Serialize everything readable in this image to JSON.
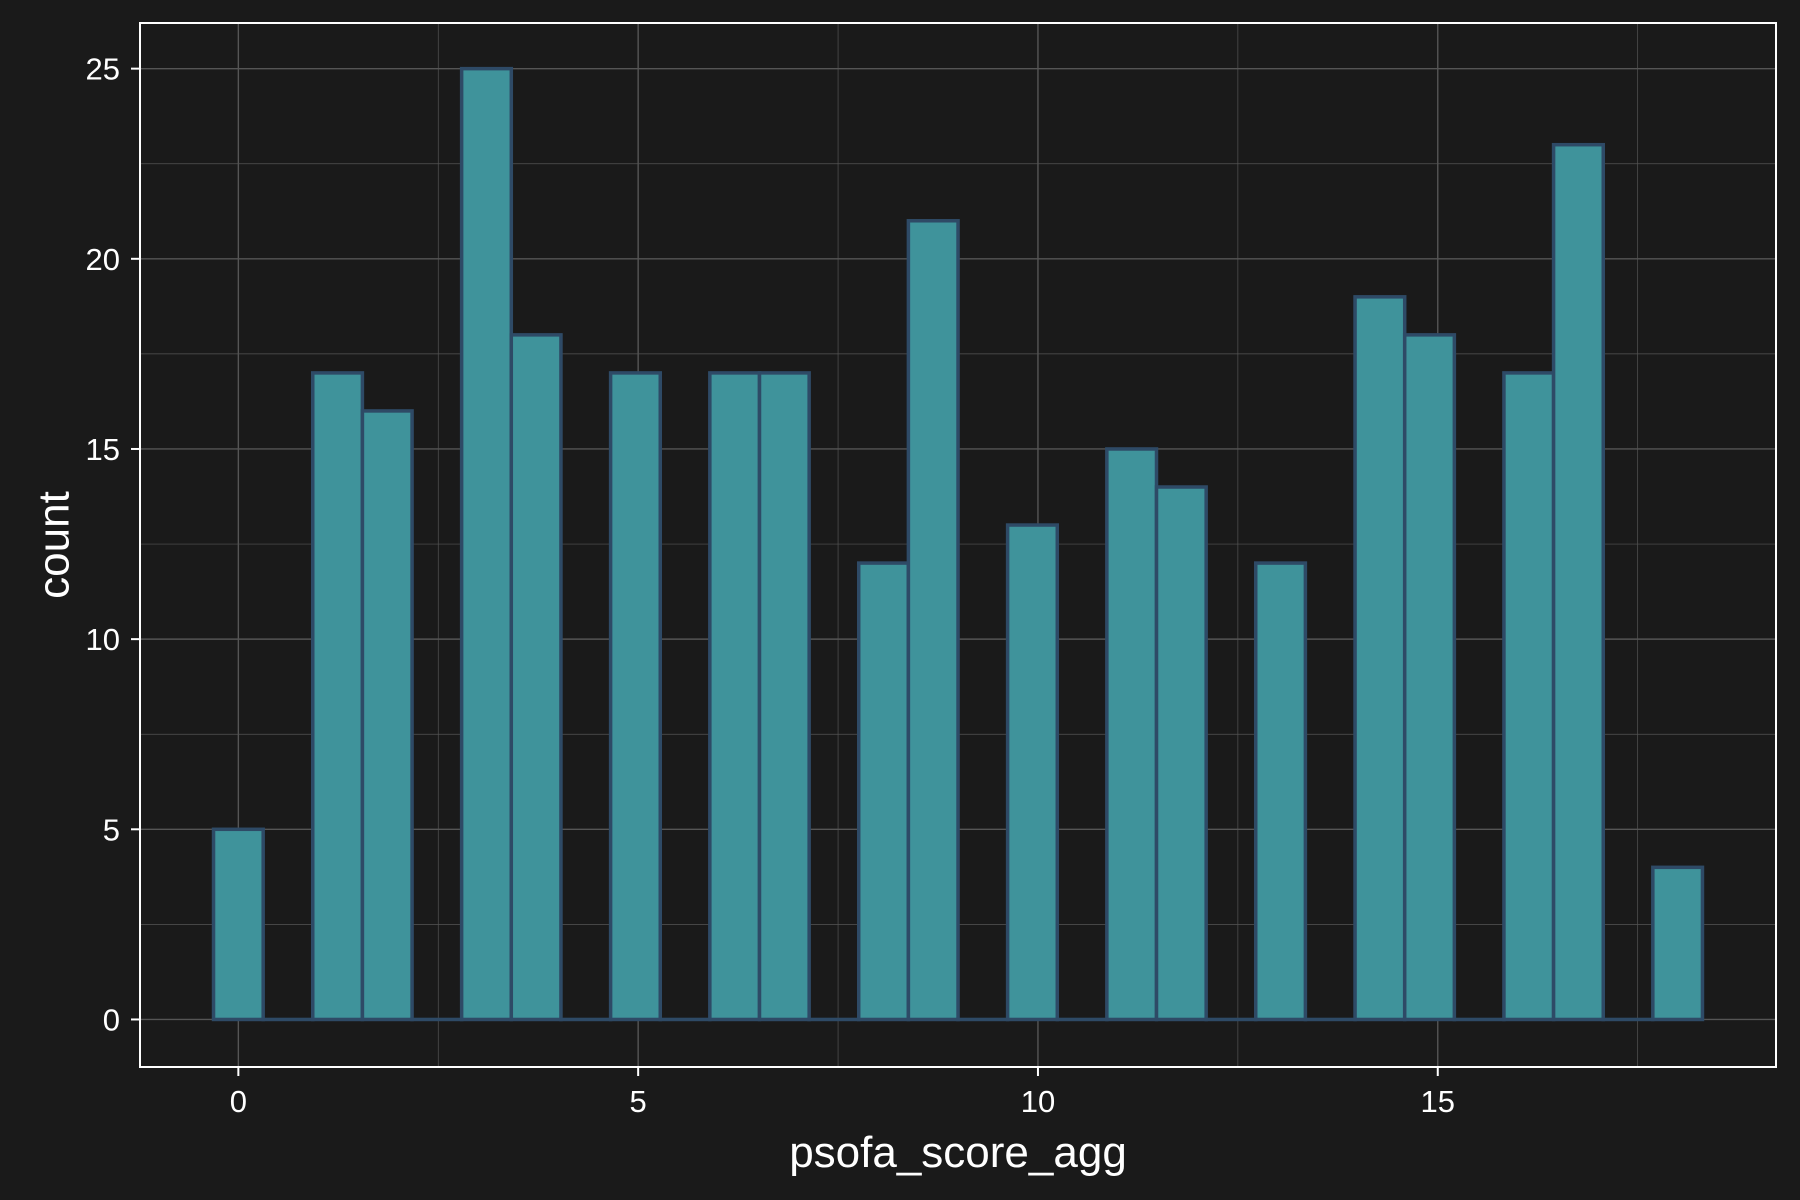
{
  "chart_data": {
    "type": "bar",
    "subtype": "histogram",
    "title": "",
    "xlabel": "psofa_score_agg",
    "ylabel": "count",
    "x_ticks": [
      0,
      5,
      10,
      15
    ],
    "y_ticks": [
      0,
      5,
      10,
      15,
      20,
      25
    ],
    "xlim": [
      -1.23,
      19.23
    ],
    "ylim": [
      -1.25,
      26.2
    ],
    "bin_width": 0.621,
    "bin_centers": [
      0.0,
      0.621,
      1.241,
      1.862,
      2.483,
      3.103,
      3.724,
      4.345,
      4.966,
      5.586,
      6.207,
      6.828,
      7.448,
      8.069,
      8.69,
      9.31,
      9.931,
      10.552,
      11.172,
      11.793,
      12.414,
      13.034,
      13.655,
      14.276,
      14.897,
      15.517,
      16.138,
      16.759,
      17.379,
      18.0
    ],
    "values": [
      5,
      0,
      17,
      16,
      0,
      25,
      18,
      0,
      17,
      0,
      17,
      17,
      0,
      12,
      21,
      0,
      13,
      0,
      15,
      14,
      0,
      12,
      0,
      19,
      18,
      0,
      17,
      23,
      0,
      4
    ],
    "grid": true,
    "colors": {
      "background": "#1a1a1a",
      "panel_border": "#ffffff",
      "grid": "#555555",
      "bar_fill": "#3f939b",
      "bar_stroke": "#2e4a66",
      "text": "#ffffff"
    }
  }
}
